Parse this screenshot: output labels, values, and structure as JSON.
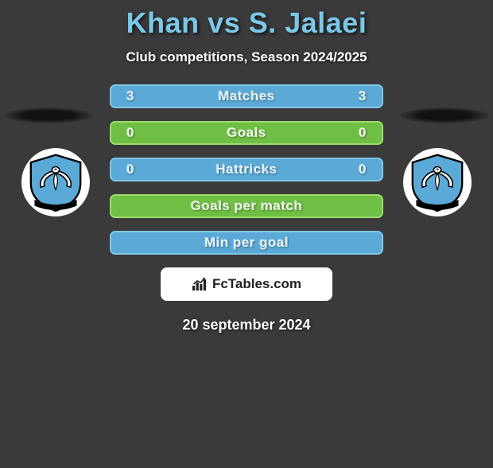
{
  "title": "Khan vs S. Jalaei",
  "subtitle": "Club competitions, Season 2024/2025",
  "footer_site": "FcTables.com",
  "date": "20 september 2024",
  "colors": {
    "bg": "#3a3a3a",
    "title": "#7ac8e8",
    "text": "#ffffff",
    "accent_blue": "#5aa9d6",
    "accent_green": "#6fbf44"
  },
  "badge": {
    "shield_bg": "#5aa9d6",
    "shield_border": "#000000",
    "bird_fill": "#ffffff",
    "bird_outline": "#000000",
    "ribbon_fill": "#000000"
  },
  "rows": [
    {
      "key": "matches",
      "label": "Matches",
      "left": "3",
      "right": "3",
      "fill": "#5aa9d6",
      "border": "#7fc7e8",
      "text": "#e6f4fb"
    },
    {
      "key": "goals",
      "label": "Goals",
      "left": "0",
      "right": "0",
      "fill": "#6fbf44",
      "border": "#9bdc6b",
      "text": "#eef9e6"
    },
    {
      "key": "hattricks",
      "label": "Hattricks",
      "left": "0",
      "right": "0",
      "fill": "#5aa9d6",
      "border": "#7fc7e8",
      "text": "#e6f4fb"
    },
    {
      "key": "gpm",
      "label": "Goals per match",
      "left": "",
      "right": "",
      "fill": "#6fbf44",
      "border": "#9bdc6b",
      "text": "#eef9e6"
    },
    {
      "key": "mpg",
      "label": "Min per goal",
      "left": "",
      "right": "",
      "fill": "#5aa9d6",
      "border": "#7fc7e8",
      "text": "#e6f4fb"
    }
  ]
}
